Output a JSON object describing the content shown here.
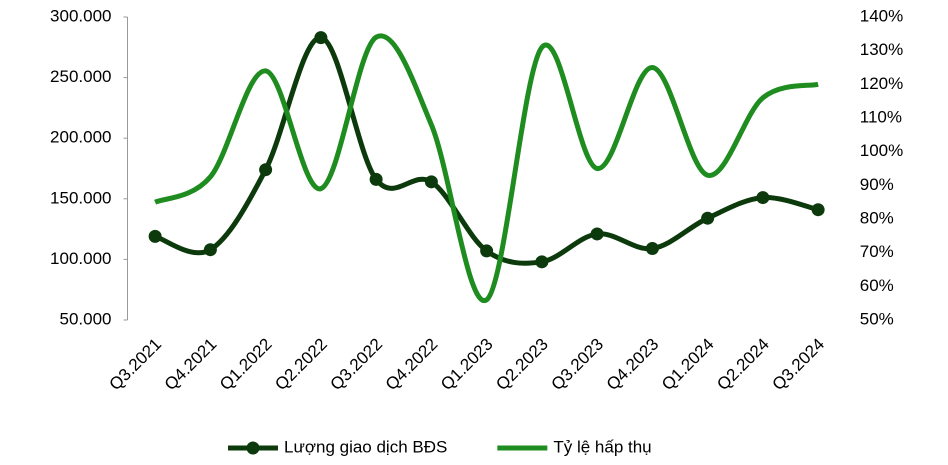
{
  "chart_data": {
    "type": "line",
    "categories": [
      "Q3.2021",
      "Q4.2021",
      "Q1.2022",
      "Q2.2022",
      "Q3.2022",
      "Q4.2022",
      "Q1.2023",
      "Q2.2023",
      "Q3.2023",
      "Q4.2023",
      "Q1.2024",
      "Q2.2024",
      "Q3.2024"
    ],
    "series": [
      {
        "name": "Lượng giao dịch BĐS",
        "color": "#0c3a0c",
        "markers": true,
        "values": [
          119000,
          108000,
          174000,
          283000,
          166000,
          164000,
          107000,
          98000,
          121000,
          109000,
          134000,
          151000,
          141000
        ]
      },
      {
        "name": "Tỷ lệ hấp thụ",
        "color": "#1f8c1f",
        "axis": "y2",
        "markers": false,
        "values": [
          85,
          92.5,
          124,
          89,
          134,
          108,
          56,
          131,
          95,
          125,
          93,
          116,
          120
        ]
      }
    ],
    "ylim": [
      50000,
      300000
    ],
    "yticks": [
      {
        "value": 50000,
        "label": "50.000"
      },
      {
        "value": 100000,
        "label": "100.000"
      },
      {
        "value": 150000,
        "label": "150.000"
      },
      {
        "value": 200000,
        "label": "200.000"
      },
      {
        "value": 250000,
        "label": "250.000"
      },
      {
        "value": 300000,
        "label": "300.000"
      }
    ],
    "y2lim": [
      50,
      140
    ],
    "y2ticks": [
      {
        "value": 50,
        "label": "50%"
      },
      {
        "value": 60,
        "label": "60%"
      },
      {
        "value": 70,
        "label": "70%"
      },
      {
        "value": 80,
        "label": "80%"
      },
      {
        "value": 90,
        "label": "90%"
      },
      {
        "value": 100,
        "label": "100%"
      },
      {
        "value": 110,
        "label": "110%"
      },
      {
        "value": 120,
        "label": "120%"
      },
      {
        "value": 130,
        "label": "130%"
      },
      {
        "value": 140,
        "label": "140%"
      }
    ],
    "smooth": true,
    "legend": "bottom"
  }
}
